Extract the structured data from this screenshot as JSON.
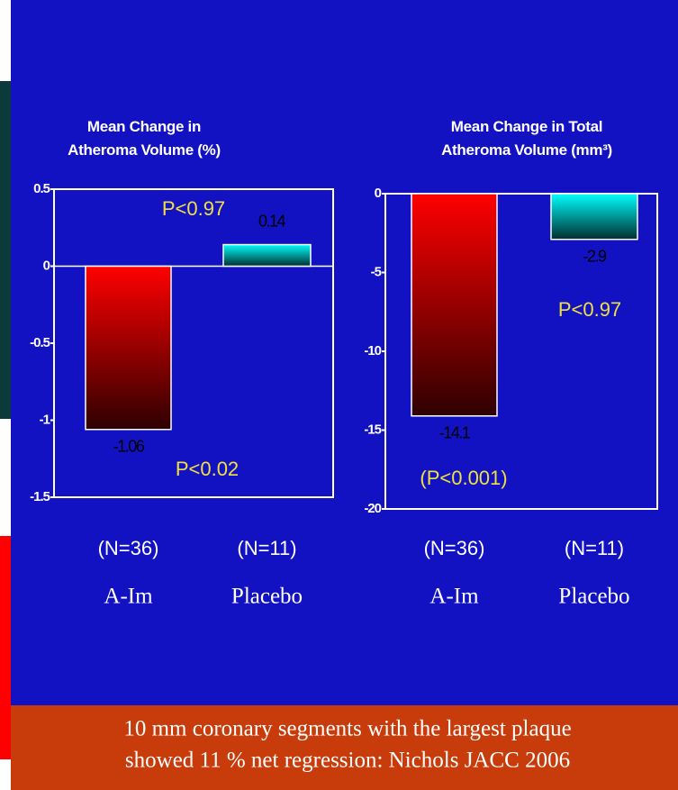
{
  "chart_data": [
    {
      "type": "bar",
      "title": "Mean Change in Atheroma Volume (%)",
      "categories": [
        "A-Im",
        "Placebo"
      ],
      "group_sizes": [
        "(N=36)",
        "(N=11)"
      ],
      "values": [
        -1.06,
        0.14
      ],
      "colors": [
        "#ff0000",
        "#00ffff"
      ],
      "ylim": [
        -1.5,
        0.5
      ],
      "yticks": [
        0.5,
        0,
        -0.5,
        -1,
        -1.5
      ],
      "annotations": [
        "P<0.97",
        "P<0.02"
      ]
    },
    {
      "type": "bar",
      "title": "Mean Change in Total Atheroma Volume (mm³)",
      "categories": [
        "A-Im",
        "Placebo"
      ],
      "group_sizes": [
        "(N=36)",
        "(N=11)"
      ],
      "values": [
        -14.1,
        -2.9
      ],
      "colors": [
        "#ff0000",
        "#00ffff"
      ],
      "ylim": [
        -20,
        0
      ],
      "yticks": [
        0,
        -5,
        -10,
        -15,
        -20
      ],
      "annotations": [
        "P<0.97",
        "(P<0.001)"
      ]
    }
  ],
  "footer": {
    "lines": [
      "10 mm coronary segments with the largest plaque",
      "showed  11 % net regression: Nichols JACC 2006"
    ]
  }
}
